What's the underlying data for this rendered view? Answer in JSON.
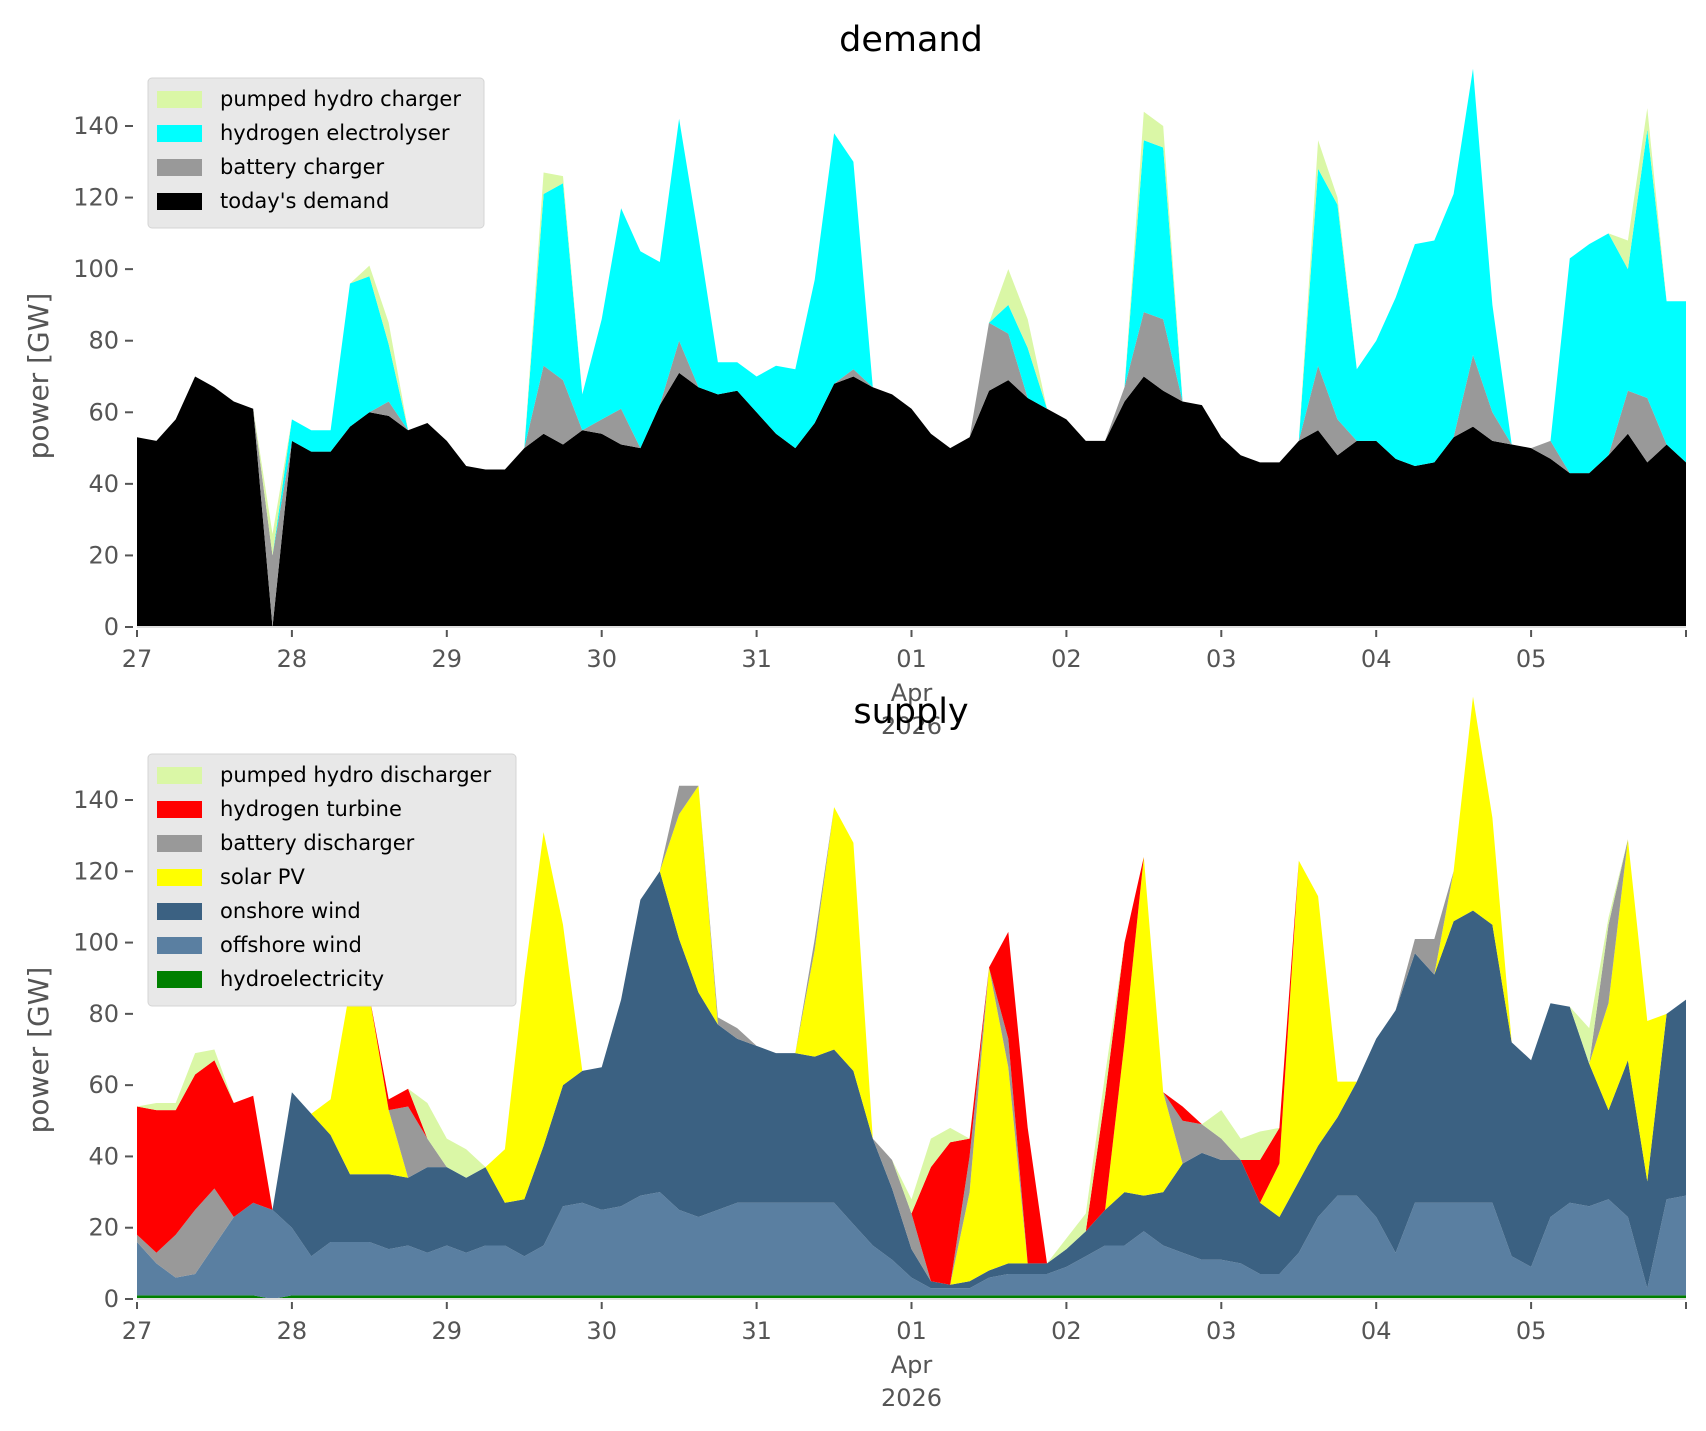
{
  "chart_data": [
    {
      "type": "area",
      "stacked": true,
      "title": "demand",
      "xlabel": "",
      "ylabel": "power [GW]",
      "ylim": [
        0,
        155
      ],
      "yticks": [
        0,
        20,
        40,
        60,
        80,
        100,
        120,
        140
      ],
      "x_start": "2026-03-27T00:00",
      "x_end": "2026-04-06T00:00",
      "x_step_hours": 3,
      "xtick_labels": [
        "27",
        "28",
        "29",
        "30",
        "31",
        "01",
        "02",
        "03",
        "04",
        "05"
      ],
      "xtick_sublabel": {
        "at": "01",
        "lines": [
          "Apr",
          "2026"
        ]
      },
      "grid": false,
      "legend_position": "top-left",
      "legend_order": [
        "pumped hydro charger",
        "hydrogen electrolyser",
        "battery charger",
        "today's demand"
      ],
      "series": [
        {
          "name": "today's demand",
          "color": "#000000",
          "values": [
            53,
            52,
            58,
            70,
            67,
            63,
            61,
            0,
            52,
            49,
            49,
            56,
            60,
            59,
            55,
            57,
            52,
            45,
            44,
            44,
            50,
            54,
            51,
            55,
            54,
            51,
            50,
            62,
            71,
            67,
            65,
            66,
            60,
            54,
            50,
            57,
            68,
            70,
            67,
            65,
            61,
            54,
            50,
            53,
            66,
            69,
            64,
            61,
            58,
            52,
            52,
            63,
            70,
            66,
            63,
            62,
            53,
            48,
            46,
            46,
            52,
            55,
            48,
            52,
            52,
            47,
            45,
            46,
            53,
            56,
            52,
            51,
            50,
            47,
            43,
            43,
            48,
            54,
            46,
            51,
            46
          ]
        },
        {
          "name": "battery charger",
          "color": "#999999",
          "values": [
            0,
            0,
            0,
            0,
            0,
            0,
            0,
            20,
            0,
            0,
            0,
            0,
            0,
            4,
            0,
            0,
            0,
            0,
            0,
            0,
            0,
            19,
            18,
            0,
            4,
            10,
            0,
            0,
            9,
            0,
            0,
            0,
            0,
            0,
            0,
            0,
            0,
            2,
            0,
            0,
            0,
            0,
            0,
            0,
            19,
            13,
            0,
            0,
            0,
            0,
            0,
            4,
            18,
            20,
            0,
            0,
            0,
            0,
            0,
            0,
            0,
            18,
            10,
            0,
            0,
            0,
            0,
            0,
            0,
            20,
            8,
            0,
            0,
            5,
            0,
            0,
            0,
            12,
            18,
            0,
            0
          ]
        },
        {
          "name": "hydrogen electrolyser",
          "color": "#00ffff",
          "values": [
            0,
            0,
            0,
            0,
            0,
            0,
            0,
            0,
            6,
            6,
            6,
            40,
            38,
            16,
            0,
            0,
            0,
            0,
            0,
            0,
            0,
            48,
            55,
            10,
            28,
            56,
            55,
            40,
            62,
            42,
            9,
            8,
            10,
            19,
            22,
            40,
            70,
            58,
            0,
            0,
            0,
            0,
            0,
            0,
            0,
            8,
            14,
            0,
            0,
            0,
            0,
            0,
            48,
            48,
            0,
            0,
            0,
            0,
            0,
            0,
            0,
            55,
            60,
            20,
            28,
            45,
            62,
            62,
            68,
            80,
            30,
            0,
            0,
            0,
            60,
            64,
            62,
            34,
            75,
            40,
            45
          ]
        },
        {
          "name": "pumped hydro charger",
          "color": "#daf7a6",
          "values": [
            0,
            0,
            0,
            0,
            0,
            0,
            0,
            6,
            0,
            0,
            0,
            0,
            3,
            6,
            0,
            0,
            0,
            0,
            0,
            0,
            0,
            6,
            2,
            0,
            0,
            0,
            0,
            0,
            0,
            0,
            0,
            0,
            0,
            0,
            0,
            0,
            0,
            0,
            0,
            0,
            0,
            0,
            0,
            0,
            0,
            10,
            8,
            0,
            0,
            0,
            0,
            0,
            8,
            6,
            0,
            0,
            0,
            0,
            0,
            0,
            0,
            8,
            2,
            0,
            0,
            0,
            0,
            0,
            0,
            0,
            0,
            0,
            0,
            0,
            0,
            0,
            0,
            8,
            6,
            0,
            0
          ]
        }
      ]
    },
    {
      "type": "area",
      "stacked": true,
      "title": "supply",
      "xlabel": "",
      "ylabel": "power [GW]",
      "ylim": [
        0,
        155
      ],
      "yticks": [
        0,
        20,
        40,
        60,
        80,
        100,
        120,
        140
      ],
      "x_start": "2026-03-27T00:00",
      "x_end": "2026-04-06T00:00",
      "x_step_hours": 3,
      "xtick_labels": [
        "27",
        "28",
        "29",
        "30",
        "31",
        "01",
        "02",
        "03",
        "04",
        "05"
      ],
      "xtick_sublabel": {
        "at": "01",
        "lines": [
          "Apr",
          "2026"
        ]
      },
      "grid": false,
      "legend_position": "top-left",
      "legend_order": [
        "pumped hydro discharger",
        "hydrogen turbine",
        "battery discharger",
        "solar PV",
        "onshore wind",
        "offshore wind",
        "hydroelectricity"
      ],
      "series": [
        {
          "name": "hydroelectricity",
          "color": "#008000",
          "values": [
            1,
            1,
            1,
            1,
            1,
            1,
            1,
            0,
            1,
            1,
            1,
            1,
            1,
            1,
            1,
            1,
            1,
            1,
            1,
            1,
            1,
            1,
            1,
            1,
            1,
            1,
            1,
            1,
            1,
            1,
            1,
            1,
            1,
            1,
            1,
            1,
            1,
            1,
            1,
            1,
            1,
            1,
            1,
            1,
            1,
            1,
            1,
            1,
            1,
            1,
            1,
            1,
            1,
            1,
            1,
            1,
            1,
            1,
            1,
            1,
            1,
            1,
            1,
            1,
            1,
            1,
            1,
            1,
            1,
            1,
            1,
            1,
            1,
            1,
            1,
            1,
            1,
            1,
            1,
            1,
            1
          ]
        },
        {
          "name": "offshore wind",
          "color": "#5a7fa1",
          "values": [
            15,
            9,
            5,
            6,
            14,
            22,
            26,
            25,
            19,
            11,
            15,
            15,
            15,
            13,
            14,
            12,
            14,
            12,
            14,
            14,
            11,
            14,
            25,
            26,
            24,
            25,
            28,
            29,
            24,
            22,
            24,
            26,
            26,
            26,
            26,
            26,
            26,
            20,
            14,
            10,
            5,
            2,
            2,
            2,
            5,
            6,
            6,
            6,
            8,
            11,
            14,
            14,
            18,
            14,
            12,
            10,
            10,
            9,
            6,
            6,
            12,
            22,
            28,
            28,
            22,
            12,
            26,
            26,
            26,
            26,
            26,
            11,
            8,
            22,
            26,
            25,
            27,
            22,
            2,
            27,
            28
          ]
        },
        {
          "name": "onshore wind",
          "color": "#3b6182",
          "values": [
            0,
            0,
            0,
            0,
            0,
            0,
            0,
            0,
            38,
            40,
            30,
            19,
            19,
            21,
            19,
            24,
            22,
            21,
            22,
            12,
            16,
            28,
            34,
            37,
            40,
            58,
            83,
            90,
            76,
            63,
            52,
            46,
            44,
            42,
            42,
            41,
            43,
            43,
            30,
            20,
            8,
            2,
            1,
            2,
            2,
            3,
            3,
            3,
            5,
            7,
            10,
            15,
            10,
            15,
            25,
            30,
            28,
            29,
            20,
            16,
            20,
            20,
            22,
            32,
            50,
            68,
            70,
            64,
            79,
            82,
            78,
            60,
            58,
            60,
            55,
            40,
            25,
            44,
            30,
            52,
            55
          ]
        },
        {
          "name": "solar PV",
          "color": "#ffff00",
          "values": [
            0,
            0,
            0,
            0,
            0,
            0,
            0,
            0,
            0,
            0,
            10,
            52,
            50,
            18,
            0,
            0,
            0,
            0,
            0,
            15,
            62,
            88,
            45,
            0,
            0,
            0,
            0,
            0,
            35,
            58,
            0,
            0,
            0,
            0,
            0,
            30,
            68,
            64,
            0,
            0,
            0,
            0,
            0,
            25,
            85,
            55,
            0,
            0,
            0,
            0,
            0,
            42,
            95,
            28,
            0,
            0,
            0,
            0,
            0,
            15,
            90,
            70,
            10,
            0,
            0,
            0,
            0,
            0,
            14,
            60,
            30,
            0,
            0,
            0,
            0,
            0,
            30,
            62,
            45,
            0,
            0
          ]
        },
        {
          "name": "battery discharger",
          "color": "#999999",
          "values": [
            2,
            3,
            12,
            18,
            16,
            0,
            0,
            0,
            0,
            0,
            0,
            0,
            0,
            0,
            20,
            8,
            0,
            0,
            0,
            0,
            0,
            0,
            0,
            0,
            0,
            0,
            0,
            0,
            8,
            0,
            2,
            3,
            0,
            0,
            0,
            3,
            0,
            0,
            0,
            8,
            10,
            0,
            0,
            10,
            0,
            8,
            0,
            0,
            0,
            0,
            0,
            0,
            0,
            0,
            12,
            8,
            6,
            0,
            0,
            0,
            0,
            0,
            0,
            0,
            0,
            0,
            4,
            10,
            0,
            0,
            0,
            0,
            0,
            0,
            0,
            0,
            22,
            0,
            0,
            0,
            0
          ]
        },
        {
          "name": "hydrogen turbine",
          "color": "#ff0000",
          "values": [
            36,
            40,
            35,
            38,
            36,
            32,
            30,
            0,
            0,
            0,
            0,
            0,
            0,
            3,
            5,
            0,
            0,
            0,
            0,
            0,
            0,
            0,
            0,
            0,
            0,
            0,
            0,
            0,
            0,
            0,
            0,
            0,
            0,
            0,
            0,
            0,
            0,
            0,
            0,
            0,
            0,
            32,
            40,
            5,
            0,
            30,
            38,
            0,
            0,
            0,
            32,
            28,
            0,
            0,
            4,
            0,
            0,
            0,
            12,
            10,
            0,
            0,
            0,
            0,
            0,
            0,
            0,
            0,
            0,
            0,
            0,
            0,
            0,
            0,
            0,
            0,
            0,
            0,
            0,
            0,
            0
          ]
        },
        {
          "name": "pumped hydro discharger",
          "color": "#daf7a6",
          "values": [
            0,
            2,
            2,
            6,
            3,
            0,
            0,
            0,
            0,
            0,
            0,
            0,
            0,
            0,
            0,
            10,
            8,
            8,
            0,
            0,
            0,
            0,
            0,
            0,
            0,
            0,
            0,
            0,
            0,
            0,
            0,
            0,
            0,
            0,
            0,
            0,
            0,
            0,
            0,
            0,
            4,
            8,
            4,
            0,
            0,
            0,
            0,
            0,
            3,
            5,
            6,
            0,
            0,
            0,
            0,
            0,
            8,
            6,
            8,
            0,
            0,
            0,
            0,
            0,
            0,
            0,
            0,
            0,
            0,
            0,
            0,
            0,
            0,
            0,
            0,
            10,
            2,
            0,
            0,
            0,
            0
          ]
        }
      ]
    }
  ]
}
